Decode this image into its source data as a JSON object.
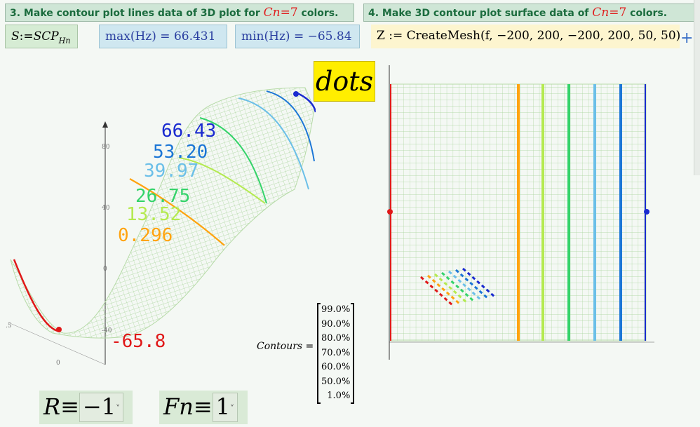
{
  "header3": {
    "text": "3. Make contour plot lines data of 3D plot for ",
    "cn": "Cn",
    "eq": "=7",
    "tail": " colors."
  },
  "header4": {
    "text": "4. Make 3D contour plot surface data of ",
    "cn": "Cn",
    "eq": "=7",
    "tail": " colors."
  },
  "eq_s": {
    "lhs": "S",
    "assign": ":=",
    "rhs": "SCP",
    "sub": "Hn"
  },
  "max_box": {
    "text": "max(Hz) = 66.431"
  },
  "min_box": {
    "text": "min(Hz) = −65.84"
  },
  "mesh_box": {
    "text": "Z := CreateMesh(f, −200, 200, −200, 200, 50, 50)"
  },
  "plus_label": "+",
  "dots_label": "dots",
  "plot3d": {
    "contour_labels": [
      "66.43",
      "53.20",
      "39.97",
      "26.75",
      "13.52",
      "0.296",
      "-65.8"
    ],
    "contour_colors": [
      "#1a2bd0",
      "#1b76d6",
      "#6bbfe8",
      "#34d36a",
      "#b4ea4f",
      "#ffa30f",
      "#e01818"
    ],
    "axis_ticks": [
      "80",
      "40",
      "0",
      "-40",
      ".5",
      "0"
    ]
  },
  "contours": {
    "label": "Contours =",
    "values": [
      "99.0%",
      "90.0%",
      "80.0%",
      "70.0%",
      "60.0%",
      "50.0%",
      "1.0%"
    ]
  },
  "controls": {
    "r": {
      "var": "R",
      "sym": "≡",
      "value": "−1"
    },
    "fn": {
      "var": "Fn",
      "sym": "≡",
      "value": "1"
    }
  },
  "contour_plot": {
    "stripe_colors": [
      "#e01818",
      "#ffa30f",
      "#b4ea4f",
      "#34d36a",
      "#6bbfe8",
      "#1b76d6",
      "#1a2bd0"
    ]
  }
}
